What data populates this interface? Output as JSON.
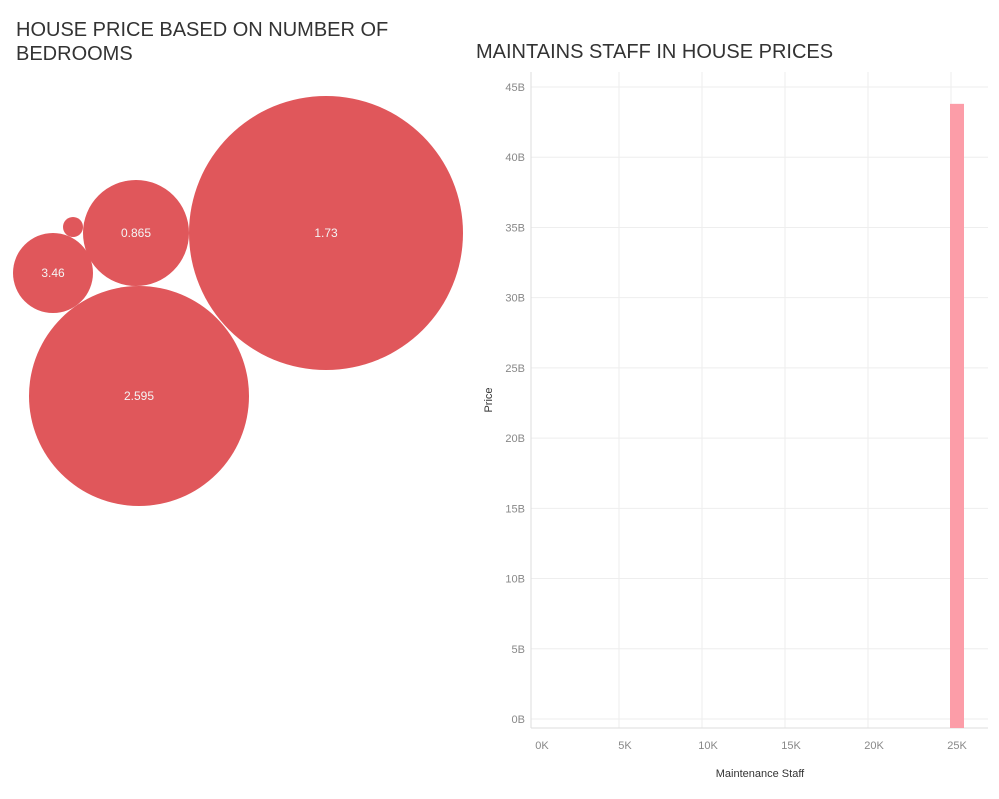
{
  "left_panel": {
    "title": "HOUSE PRICE BASED  ON NUMBER OF BEDROOMS"
  },
  "right_panel": {
    "title": "MAINTAINS STAFF IN HOUSE PRICES"
  },
  "colors": {
    "bubble": "#e0575b",
    "bar": "#fc9da8",
    "grid": "#eeeeee"
  },
  "chart_data": [
    {
      "type": "bubble",
      "title": "HOUSE PRICE BASED  ON NUMBER OF BEDROOMS",
      "bubbles": [
        {
          "label": "1.73"
        },
        {
          "label": "2.595"
        },
        {
          "label": "0.865"
        },
        {
          "label": "3.46"
        },
        {
          "label": ""
        }
      ]
    },
    {
      "type": "bar",
      "title": "MAINTAINS STAFF IN HOUSE PRICES",
      "xlabel": "Maintenance Staff",
      "ylabel": "Price",
      "xlim": [
        0,
        25000
      ],
      "ylim": [
        0,
        45000000000
      ],
      "xticks": [
        "0K",
        "5K",
        "10K",
        "15K",
        "20K",
        "25K"
      ],
      "yticks": [
        "0B",
        "5B",
        "10B",
        "15B",
        "20B",
        "25B",
        "30B",
        "35B",
        "40B",
        "45B"
      ],
      "x": [
        25000
      ],
      "values": [
        43800000000
      ]
    }
  ]
}
